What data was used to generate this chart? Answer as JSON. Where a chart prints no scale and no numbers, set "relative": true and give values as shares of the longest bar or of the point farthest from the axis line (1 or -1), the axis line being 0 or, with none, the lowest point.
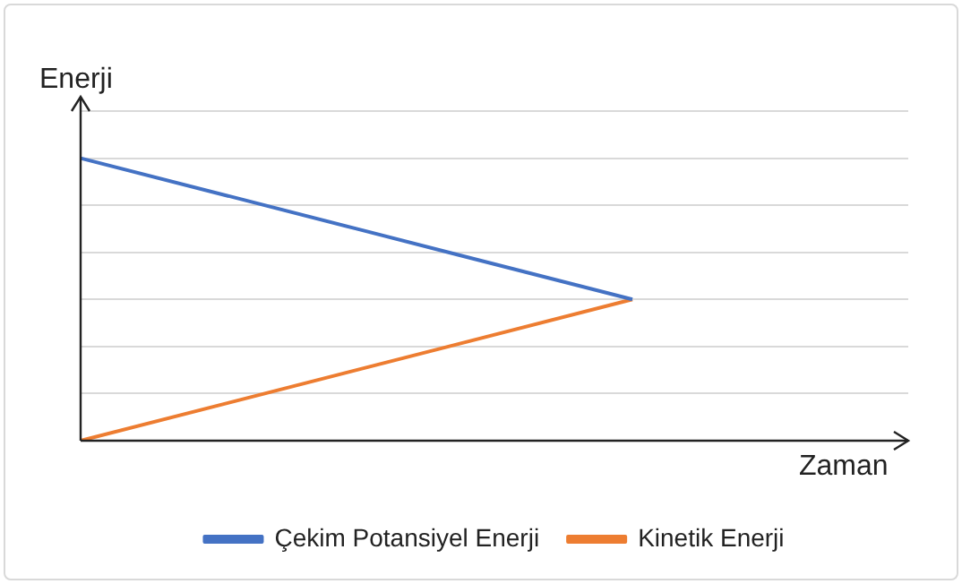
{
  "chart_data": {
    "type": "line",
    "relative": true,
    "xlabel": "Zaman",
    "ylabel": "Enerji",
    "categories": [
      null,
      null,
      null,
      null
    ],
    "series": [
      {
        "name": "Çekim Potansiyel Enerji",
        "color": "#4472c4",
        "values": [
          1,
          0.75,
          0.5,
          null
        ]
      },
      {
        "name": "Kinetik Enerji",
        "color": "#ed7d31",
        "values": [
          0,
          0.25,
          0.5,
          null
        ]
      }
    ],
    "grid": "y",
    "legend": "bottom",
    "marker": "none",
    "line_style": "solid"
  }
}
